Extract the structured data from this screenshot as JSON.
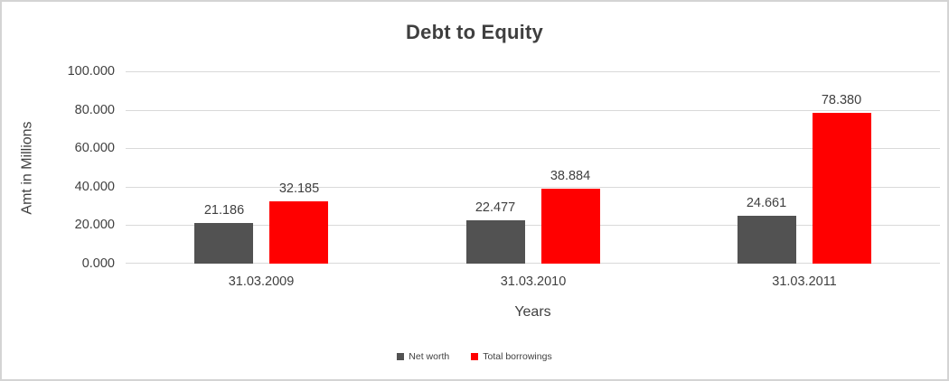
{
  "frame": {
    "background_color": "#ffffff",
    "border_color": "#d4d4d4"
  },
  "chart_data": {
    "type": "bar",
    "title": "Debt to Equity",
    "xlabel": "Years",
    "ylabel": "Amt in Millions",
    "categories": [
      "31.03.2009",
      "31.03.2010",
      "31.03.2011"
    ],
    "series": [
      {
        "name": "Net worth",
        "color": "#525252",
        "values": [
          21.186,
          22.477,
          24.661
        ],
        "labels": [
          "21.186",
          "22.477",
          "24.661"
        ]
      },
      {
        "name": "Total borrowings",
        "color": "#ff0000",
        "values": [
          32.185,
          38.884,
          78.38
        ],
        "labels": [
          "32.185",
          "38.884",
          "78.380"
        ]
      }
    ],
    "y_axis": {
      "min": 0,
      "max": 100,
      "tick_interval": 20,
      "tick_labels": [
        "0.000",
        "20.000",
        "40.000",
        "60.000",
        "80.000",
        "100.000"
      ]
    },
    "grid_on": true,
    "grid_color": "#d9d9d9",
    "text_color": "#404040",
    "legend_position": "bottom"
  }
}
